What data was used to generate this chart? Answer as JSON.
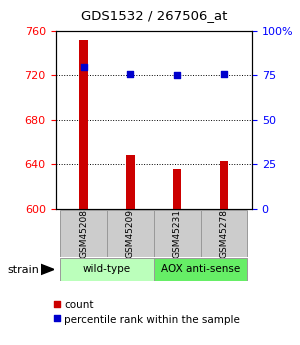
{
  "title": "GDS1532 / 267506_at",
  "samples": [
    "GSM45208",
    "GSM45209",
    "GSM45231",
    "GSM45278"
  ],
  "counts": [
    752,
    648,
    636,
    643
  ],
  "percentiles": [
    80,
    76,
    75,
    76
  ],
  "ylim_left": [
    600,
    760
  ],
  "ylim_right": [
    0,
    100
  ],
  "yticks_left": [
    600,
    640,
    680,
    720,
    760
  ],
  "yticks_right": [
    0,
    25,
    50,
    75,
    100
  ],
  "bar_color": "#cc0000",
  "dot_color": "#0000cc",
  "baseline": 600,
  "groups": [
    {
      "label": "wild-type",
      "indices": [
        0,
        1
      ],
      "color": "#bbffbb"
    },
    {
      "label": "AOX anti-sense",
      "indices": [
        2,
        3
      ],
      "color": "#66ee66"
    }
  ],
  "strain_label": "strain",
  "legend_count_label": "count",
  "legend_pct_label": "percentile rank within the sample",
  "grid_color": "#000000",
  "background_color": "#ffffff",
  "plot_bg_color": "#ffffff",
  "sample_box_color": "#cccccc",
  "bar_width": 0.18
}
